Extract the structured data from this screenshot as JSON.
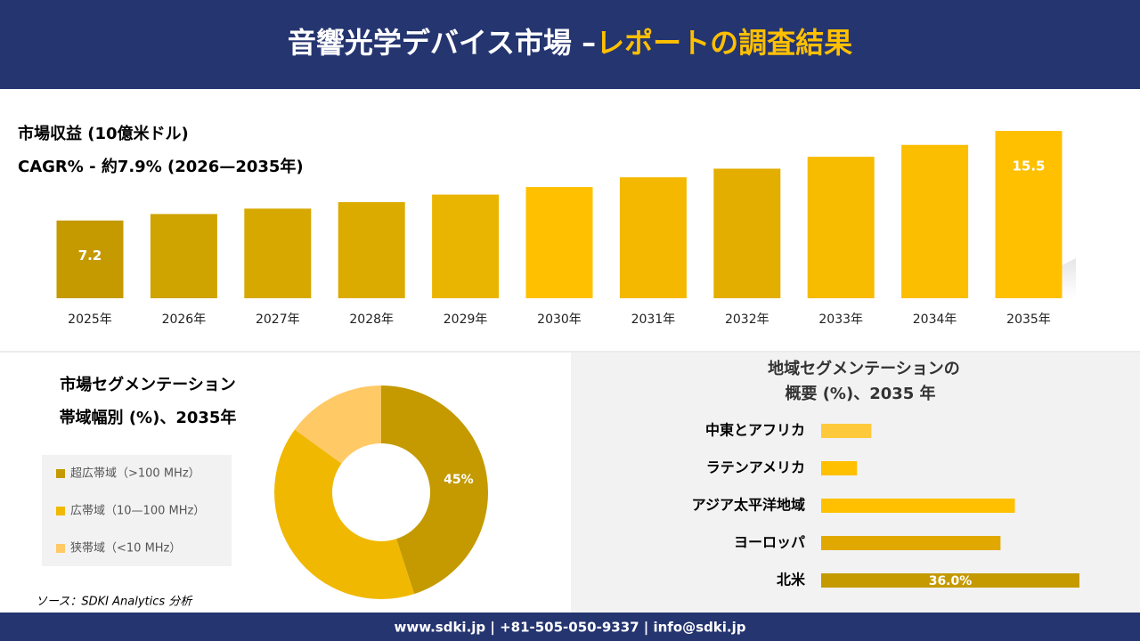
{
  "header": {
    "title": "音響光学デバイス市場 –",
    "title_highlight": "レポートの調査結果"
  },
  "chart_data": [
    {
      "type": "bar",
      "title": "市場収益 (10億米ドル)",
      "subtitle": "CAGR% - 約7.9% (2026—2035年)",
      "categories": [
        "2025年",
        "2026年",
        "2027年",
        "2028年",
        "2029年",
        "2030年",
        "2031年",
        "2032年",
        "2033年",
        "2034年",
        "2035年"
      ],
      "values": [
        7.2,
        7.8,
        8.3,
        8.9,
        9.6,
        10.3,
        11.2,
        12.0,
        13.1,
        14.2,
        15.5
      ],
      "value_labels": [
        "7.2",
        null,
        null,
        null,
        null,
        null,
        null,
        null,
        null,
        null,
        "15.5"
      ],
      "colors": [
        "#c49a00",
        "#cfa300",
        "#d6a800",
        "#dcab00",
        "#eab500",
        "#ffc000",
        "#f4b800",
        "#e3ae00",
        "#f7bb00",
        "#fcbe00",
        "#ffc000"
      ]
    },
    {
      "type": "pie",
      "title": "市場セグメンテーション",
      "subtitle": "帯域幅別 (%)、2035年",
      "categories": [
        "超広帯域（>100 MHz）",
        "広帯域（10—100 MHz）",
        "狭帯域（<10 MHz）"
      ],
      "values": [
        45,
        40,
        15
      ],
      "value_labels": [
        "45%",
        null,
        null
      ],
      "colors": [
        "#c49a00",
        "#f0b800",
        "#ffc966"
      ]
    },
    {
      "type": "hbar",
      "title": "地域セグメンテーションの",
      "subtitle": "概要 (%)、2035 年",
      "categories": [
        "中東とアフリカ",
        "ラテンアメリカ",
        "アジア太平洋地域",
        "ヨーロッパ",
        "北米"
      ],
      "values": [
        7.0,
        5.0,
        27.0,
        25.0,
        36.0
      ],
      "value_labels": [
        null,
        null,
        null,
        null,
        "36.0%"
      ],
      "colors": [
        "#ffc93c",
        "#ffc000",
        "#ffc000",
        "#e0a800",
        "#c49a00"
      ]
    }
  ],
  "source": "ソース：SDKI Analytics 分析",
  "footer": "www.sdki.jp | +81-505-050-9337 | info@sdki.jp"
}
